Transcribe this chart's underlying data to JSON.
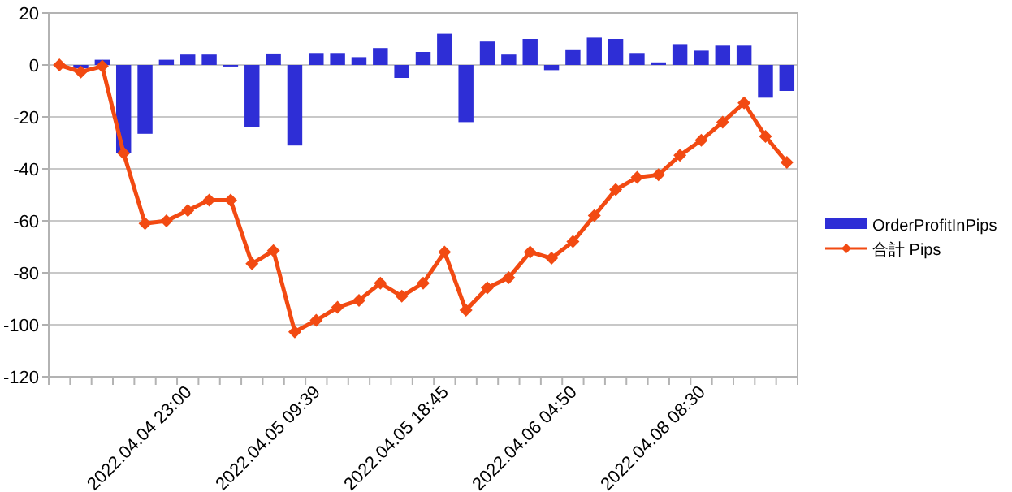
{
  "chart_data": {
    "type": "bar",
    "categories": [
      null,
      null,
      null,
      null,
      null,
      null,
      "2022.04.04 23:00",
      null,
      null,
      null,
      null,
      null,
      "2022.04.05 09:39",
      null,
      null,
      null,
      null,
      null,
      "2022.04.05 18:45",
      null,
      null,
      null,
      null,
      null,
      "2022.04.06 04:50",
      null,
      null,
      null,
      null,
      null,
      "2022.04.08 08:30",
      null,
      null,
      null,
      null
    ],
    "series": [
      {
        "name": "OrderProfitInPips",
        "color": "#2e2ed6",
        "values": [
          0,
          -1.3,
          2,
          -34,
          -26.5,
          2,
          4,
          4,
          -0.6,
          -24,
          4.4,
          -31,
          4.6,
          4.6,
          3,
          6.5,
          -5,
          5,
          12,
          -22,
          9,
          4,
          10,
          -2,
          6,
          10.5,
          10,
          4.6,
          1,
          8,
          5.5,
          7.4,
          7.4,
          -12.6,
          -10
        ]
      },
      {
        "name": "合計 Pips",
        "type": "line",
        "color": "#f24a12",
        "marker": "diamond",
        "values": [
          0,
          -2.7,
          -0.5,
          -34,
          -61,
          -60,
          -56,
          -52,
          -52,
          -76.5,
          -71.5,
          -102.7,
          -98.3,
          -93.3,
          -90.6,
          -84,
          -89,
          -84,
          -72,
          -94.4,
          -85.8,
          -81.9,
          -72,
          -74.4,
          -68,
          -58,
          -48,
          -43.3,
          -42.3,
          -34.8,
          -29,
          -22,
          -14.6,
          -27.5,
          -37.5
        ]
      }
    ],
    "ylim": [
      -120,
      20
    ],
    "yticks": [
      -120,
      -100,
      -80,
      -60,
      -40,
      -20,
      0,
      20
    ],
    "grid": "y",
    "legend": "right"
  }
}
